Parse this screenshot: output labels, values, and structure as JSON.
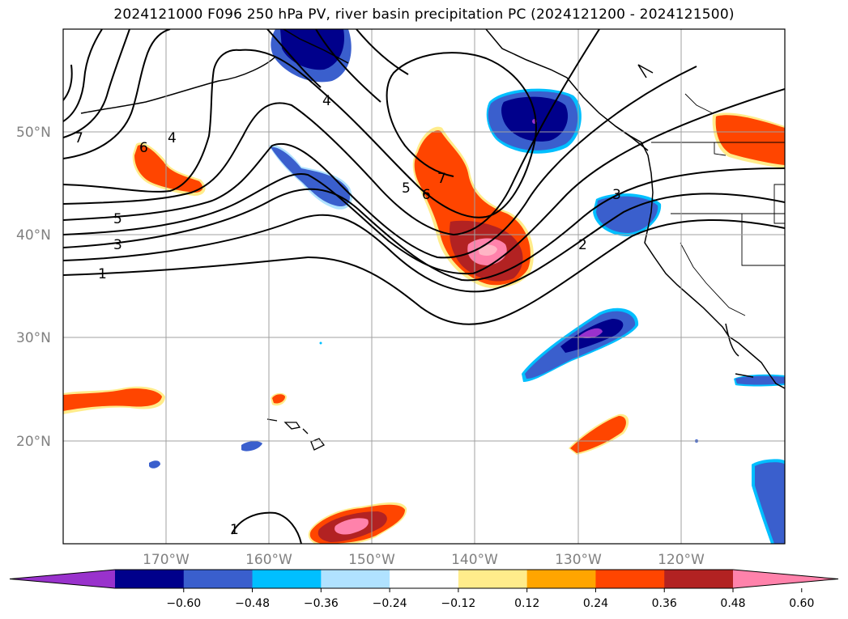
{
  "title": "2024121000 F096 250 hPa PV, river basin precipitation PC (2024121200 - 2024121500)",
  "map": {
    "lat_labels": [
      "50°N",
      "40°N",
      "30°N",
      "20°N"
    ],
    "lon_labels": [
      "170°W",
      "160°W",
      "150°W",
      "140°W",
      "130°W",
      "120°W"
    ],
    "grid_color": "#a0a0a0",
    "label_color": "#808080"
  },
  "pv_contours": {
    "labels": [
      "7",
      "4",
      "6",
      "5",
      "3",
      "1",
      "4",
      "7",
      "6",
      "5",
      "3",
      "2",
      "1"
    ]
  },
  "colorbar": {
    "ticks": [
      "−0.60",
      "−0.48",
      "−0.36",
      "−0.24",
      "−0.12",
      "0.12",
      "0.24",
      "0.36",
      "0.48",
      "0.60"
    ],
    "colors": [
      "#9932cc",
      "#00008b",
      "#3a5fcd",
      "#00bfff",
      "#b0e2ff",
      "#ffffff",
      "#ffec8b",
      "#ffa500",
      "#ff4500",
      "#b22222",
      "#ff82ab"
    ]
  }
}
